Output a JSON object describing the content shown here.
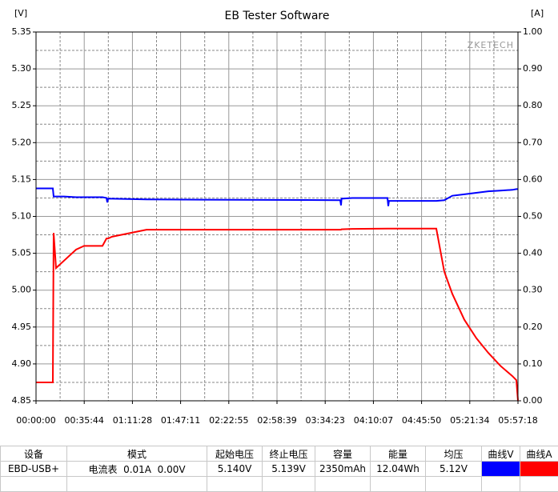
{
  "chart_data": {
    "type": "line",
    "title": "EB Tester Software",
    "y_unit": "[V]",
    "y2_unit": "[A]",
    "watermark": "ZKETECH",
    "x": [
      0,
      748,
      783,
      890,
      1246,
      1781,
      2137,
      2956,
      3134,
      3170,
      3205,
      3383,
      4914,
      13532,
      13567,
      13590,
      14066,
      15633,
      15669,
      15700,
      17805,
      18161,
      18517,
      19051,
      19585,
      20119,
      20654,
      21188,
      21366,
      21438
    ],
    "series": [
      {
        "name": "曲线V",
        "color": "#0000ff",
        "values": [
          5.138,
          5.138,
          5.127,
          5.127,
          5.127,
          5.126,
          5.126,
          5.126,
          5.125,
          5.119,
          5.124,
          5.124,
          5.123,
          5.122,
          5.115,
          5.124,
          5.125,
          5.125,
          5.114,
          5.121,
          5.121,
          5.122,
          5.128,
          5.13,
          5.132,
          5.134,
          5.135,
          5.136,
          5.137,
          5.137
        ]
      },
      {
        "name": "曲线A",
        "color": "#ff0000",
        "axis": "y2",
        "values": [
          0.05,
          0.05,
          0.455,
          0.36,
          0.38,
          0.41,
          0.42,
          0.42,
          0.44,
          0.44,
          0.44,
          0.445,
          0.464,
          0.464,
          0.464,
          0.465,
          0.466,
          0.467,
          0.467,
          0.467,
          0.467,
          0.35,
          0.29,
          0.22,
          0.17,
          0.13,
          0.095,
          0.067,
          0.056,
          0
        ]
      }
    ],
    "xlim": [
      0,
      21438
    ],
    "xticks": [
      {
        "value": 0,
        "label": "00:00:00"
      },
      {
        "value": 2144,
        "label": "00:35:44"
      },
      {
        "value": 4288,
        "label": "01:11:28"
      },
      {
        "value": 6431,
        "label": "01:47:11"
      },
      {
        "value": 8575,
        "label": "02:22:55"
      },
      {
        "value": 10719,
        "label": "02:58:39"
      },
      {
        "value": 12863,
        "label": "03:34:23"
      },
      {
        "value": 15007,
        "label": "04:10:07"
      },
      {
        "value": 17150,
        "label": "04:45:50"
      },
      {
        "value": 19294,
        "label": "05:21:34"
      },
      {
        "value": 21438,
        "label": "05:57:18"
      }
    ],
    "ylim": [
      4.85,
      5.35
    ],
    "yticks": [
      {
        "value": 4.85,
        "label": "4.85"
      },
      {
        "value": 4.9,
        "label": "4.90"
      },
      {
        "value": 4.95,
        "label": "4.95"
      },
      {
        "value": 5,
        "label": "5.00"
      },
      {
        "value": 5.05,
        "label": "5.05"
      },
      {
        "value": 5.1,
        "label": "5.10"
      },
      {
        "value": 5.15,
        "label": "5.15"
      },
      {
        "value": 5.2,
        "label": "5.20"
      },
      {
        "value": 5.25,
        "label": "5.25"
      },
      {
        "value": 5.3,
        "label": "5.30"
      },
      {
        "value": 5.35,
        "label": "5.35"
      }
    ],
    "y2lim": [
      0,
      1
    ],
    "y2ticks": [
      {
        "value": 0,
        "label": "0.00"
      },
      {
        "value": 0.1,
        "label": "0.10"
      },
      {
        "value": 0.2,
        "label": "0.20"
      },
      {
        "value": 0.3,
        "label": "0.30"
      },
      {
        "value": 0.4,
        "label": "0.40"
      },
      {
        "value": 0.5,
        "label": "0.50"
      },
      {
        "value": 0.6,
        "label": "0.60"
      },
      {
        "value": 0.7,
        "label": "0.70"
      },
      {
        "value": 0.8,
        "label": "0.80"
      },
      {
        "value": 0.9,
        "label": "0.90"
      },
      {
        "value": 1,
        "label": "1.00"
      }
    ],
    "grid": true
  },
  "table": {
    "headers": [
      "设备",
      "模式",
      "起始电压",
      "终止电压",
      "容量",
      "能量",
      "均压",
      "曲线V",
      "曲线A"
    ],
    "rows": [
      [
        "EBD-USB+",
        "电流表  0.01A  0.00V",
        "5.140V",
        "5.139V",
        "2350mAh",
        "12.04Wh",
        "5.12V"
      ]
    ]
  }
}
